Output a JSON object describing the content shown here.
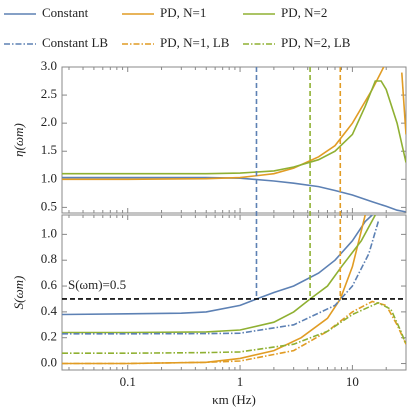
{
  "chart_data": [
    {
      "type": "line",
      "xscale": "log",
      "ylabel": "η(ωm)",
      "xlim": [
        0.026,
        30
      ],
      "ylim": [
        0.4,
        3.0
      ],
      "yticks": [
        0.5,
        {
          "value": 1.0,
          "label": "1.0"
        },
        1.5,
        {
          "value": 2.0,
          "label": "2.0"
        },
        2.5,
        {
          "value": 3.0,
          "label": "3.0"
        }
      ],
      "vlines": [
        {
          "x": 1.4,
          "color": "#5d81b4"
        },
        {
          "x": 4.2,
          "color": "#8fb032"
        },
        {
          "x": 7.8,
          "color": "#e19c24"
        }
      ],
      "series": [
        {
          "name": "Constant",
          "color": "#5d81b4",
          "dash": "solid",
          "x": [
            0.026,
            0.1,
            0.5,
            1,
            2,
            3,
            5,
            7,
            10,
            15,
            20,
            25,
            30
          ],
          "values": [
            1.03,
            1.03,
            1.03,
            1.02,
            0.97,
            0.93,
            0.87,
            0.8,
            0.72,
            0.6,
            0.52,
            0.45,
            0.42
          ]
        },
        {
          "name": "PD, N=1",
          "color": "#e19c24",
          "dash": "solid",
          "x": [
            0.026,
            0.1,
            0.5,
            1,
            2,
            3,
            5,
            7,
            10,
            15,
            19,
            23,
            27.5,
            30
          ],
          "values": [
            1.0,
            1.0,
            1.01,
            1.03,
            1.1,
            1.2,
            1.4,
            1.6,
            2.0,
            2.6,
            3.0,
            null,
            2.9,
            1.8
          ]
        },
        {
          "name": "PD, N=2",
          "color": "#8fb032",
          "dash": "solid",
          "x": [
            0.026,
            0.1,
            0.5,
            1,
            2,
            3,
            5,
            7,
            10,
            13,
            16,
            18,
            20,
            25,
            30
          ],
          "values": [
            1.1,
            1.1,
            1.1,
            1.11,
            1.15,
            1.22,
            1.35,
            1.5,
            1.8,
            2.3,
            2.75,
            2.75,
            2.6,
            2.0,
            1.3
          ]
        }
      ]
    },
    {
      "type": "line",
      "xscale": "log",
      "ylabel": "S(ωm)",
      "xlabel": "κm (Hz)",
      "xlim": [
        0.026,
        30
      ],
      "ylim": [
        -0.05,
        1.15
      ],
      "xticks": [
        0.1,
        1,
        10
      ],
      "xminorticks": [
        0.03,
        0.04,
        0.05,
        0.06,
        0.07,
        0.08,
        0.09,
        0.2,
        0.3,
        0.4,
        0.5,
        0.6,
        0.7,
        0.8,
        0.9,
        2,
        3,
        4,
        5,
        6,
        7,
        8,
        9,
        20,
        30
      ],
      "yticks": [
        {
          "value": 0.0,
          "label": "0.0"
        },
        0.2,
        0.4,
        0.6,
        0.8,
        {
          "value": 1.0,
          "label": "1.0"
        }
      ],
      "hline": 0.5,
      "hline_label": "S(ωm)=0.5",
      "series": [
        {
          "color": "#5d81b4",
          "dash": "solid",
          "x": [
            0.026,
            0.1,
            0.3,
            0.5,
            1,
            1.4,
            2,
            3,
            5,
            7,
            10,
            13,
            15
          ],
          "values": [
            0.38,
            0.385,
            0.39,
            0.4,
            0.45,
            0.5,
            0.55,
            0.6,
            0.7,
            0.8,
            0.95,
            1.1,
            1.15
          ]
        },
        {
          "color": "#e19c24",
          "dash": "solid",
          "x": [
            0.026,
            0.1,
            0.5,
            1,
            2,
            3.5,
            6,
            7.8,
            10,
            13
          ],
          "values": [
            0.0,
            0.0,
            0.01,
            0.04,
            0.1,
            0.2,
            0.35,
            0.5,
            0.75,
            1.15
          ]
        },
        {
          "color": "#8fb032",
          "dash": "solid",
          "x": [
            0.026,
            0.1,
            0.5,
            1,
            2,
            3,
            4.2,
            6,
            8,
            12,
            16
          ],
          "values": [
            0.24,
            0.24,
            0.245,
            0.26,
            0.32,
            0.4,
            0.5,
            0.6,
            0.75,
            0.95,
            1.15
          ]
        },
        {
          "name": "Constant LB",
          "color": "#5d81b4",
          "dash": "dashdot",
          "x": [
            0.026,
            0.1,
            0.5,
            1,
            3,
            7,
            10,
            14,
            17
          ],
          "values": [
            0.23,
            0.23,
            0.232,
            0.235,
            0.3,
            0.45,
            0.6,
            0.85,
            1.1
          ]
        },
        {
          "name": "PD, N=1, LB",
          "color": "#e19c24",
          "dash": "dashdot",
          "x": [
            0.026,
            0.1,
            0.5,
            1,
            3,
            6,
            10,
            15,
            20,
            25,
            30
          ],
          "values": [
            0.0,
            0.0,
            0.01,
            0.02,
            0.1,
            0.25,
            0.4,
            0.48,
            0.45,
            0.3,
            0.15
          ]
        },
        {
          "name": "PD, N=2, LB",
          "color": "#8fb032",
          "dash": "dashdot",
          "x": [
            0.026,
            0.1,
            0.5,
            1,
            3,
            6,
            10,
            17,
            22,
            27,
            30
          ],
          "values": [
            0.08,
            0.08,
            0.085,
            0.09,
            0.15,
            0.25,
            0.38,
            0.47,
            0.42,
            0.25,
            0.15
          ]
        }
      ]
    }
  ]
}
